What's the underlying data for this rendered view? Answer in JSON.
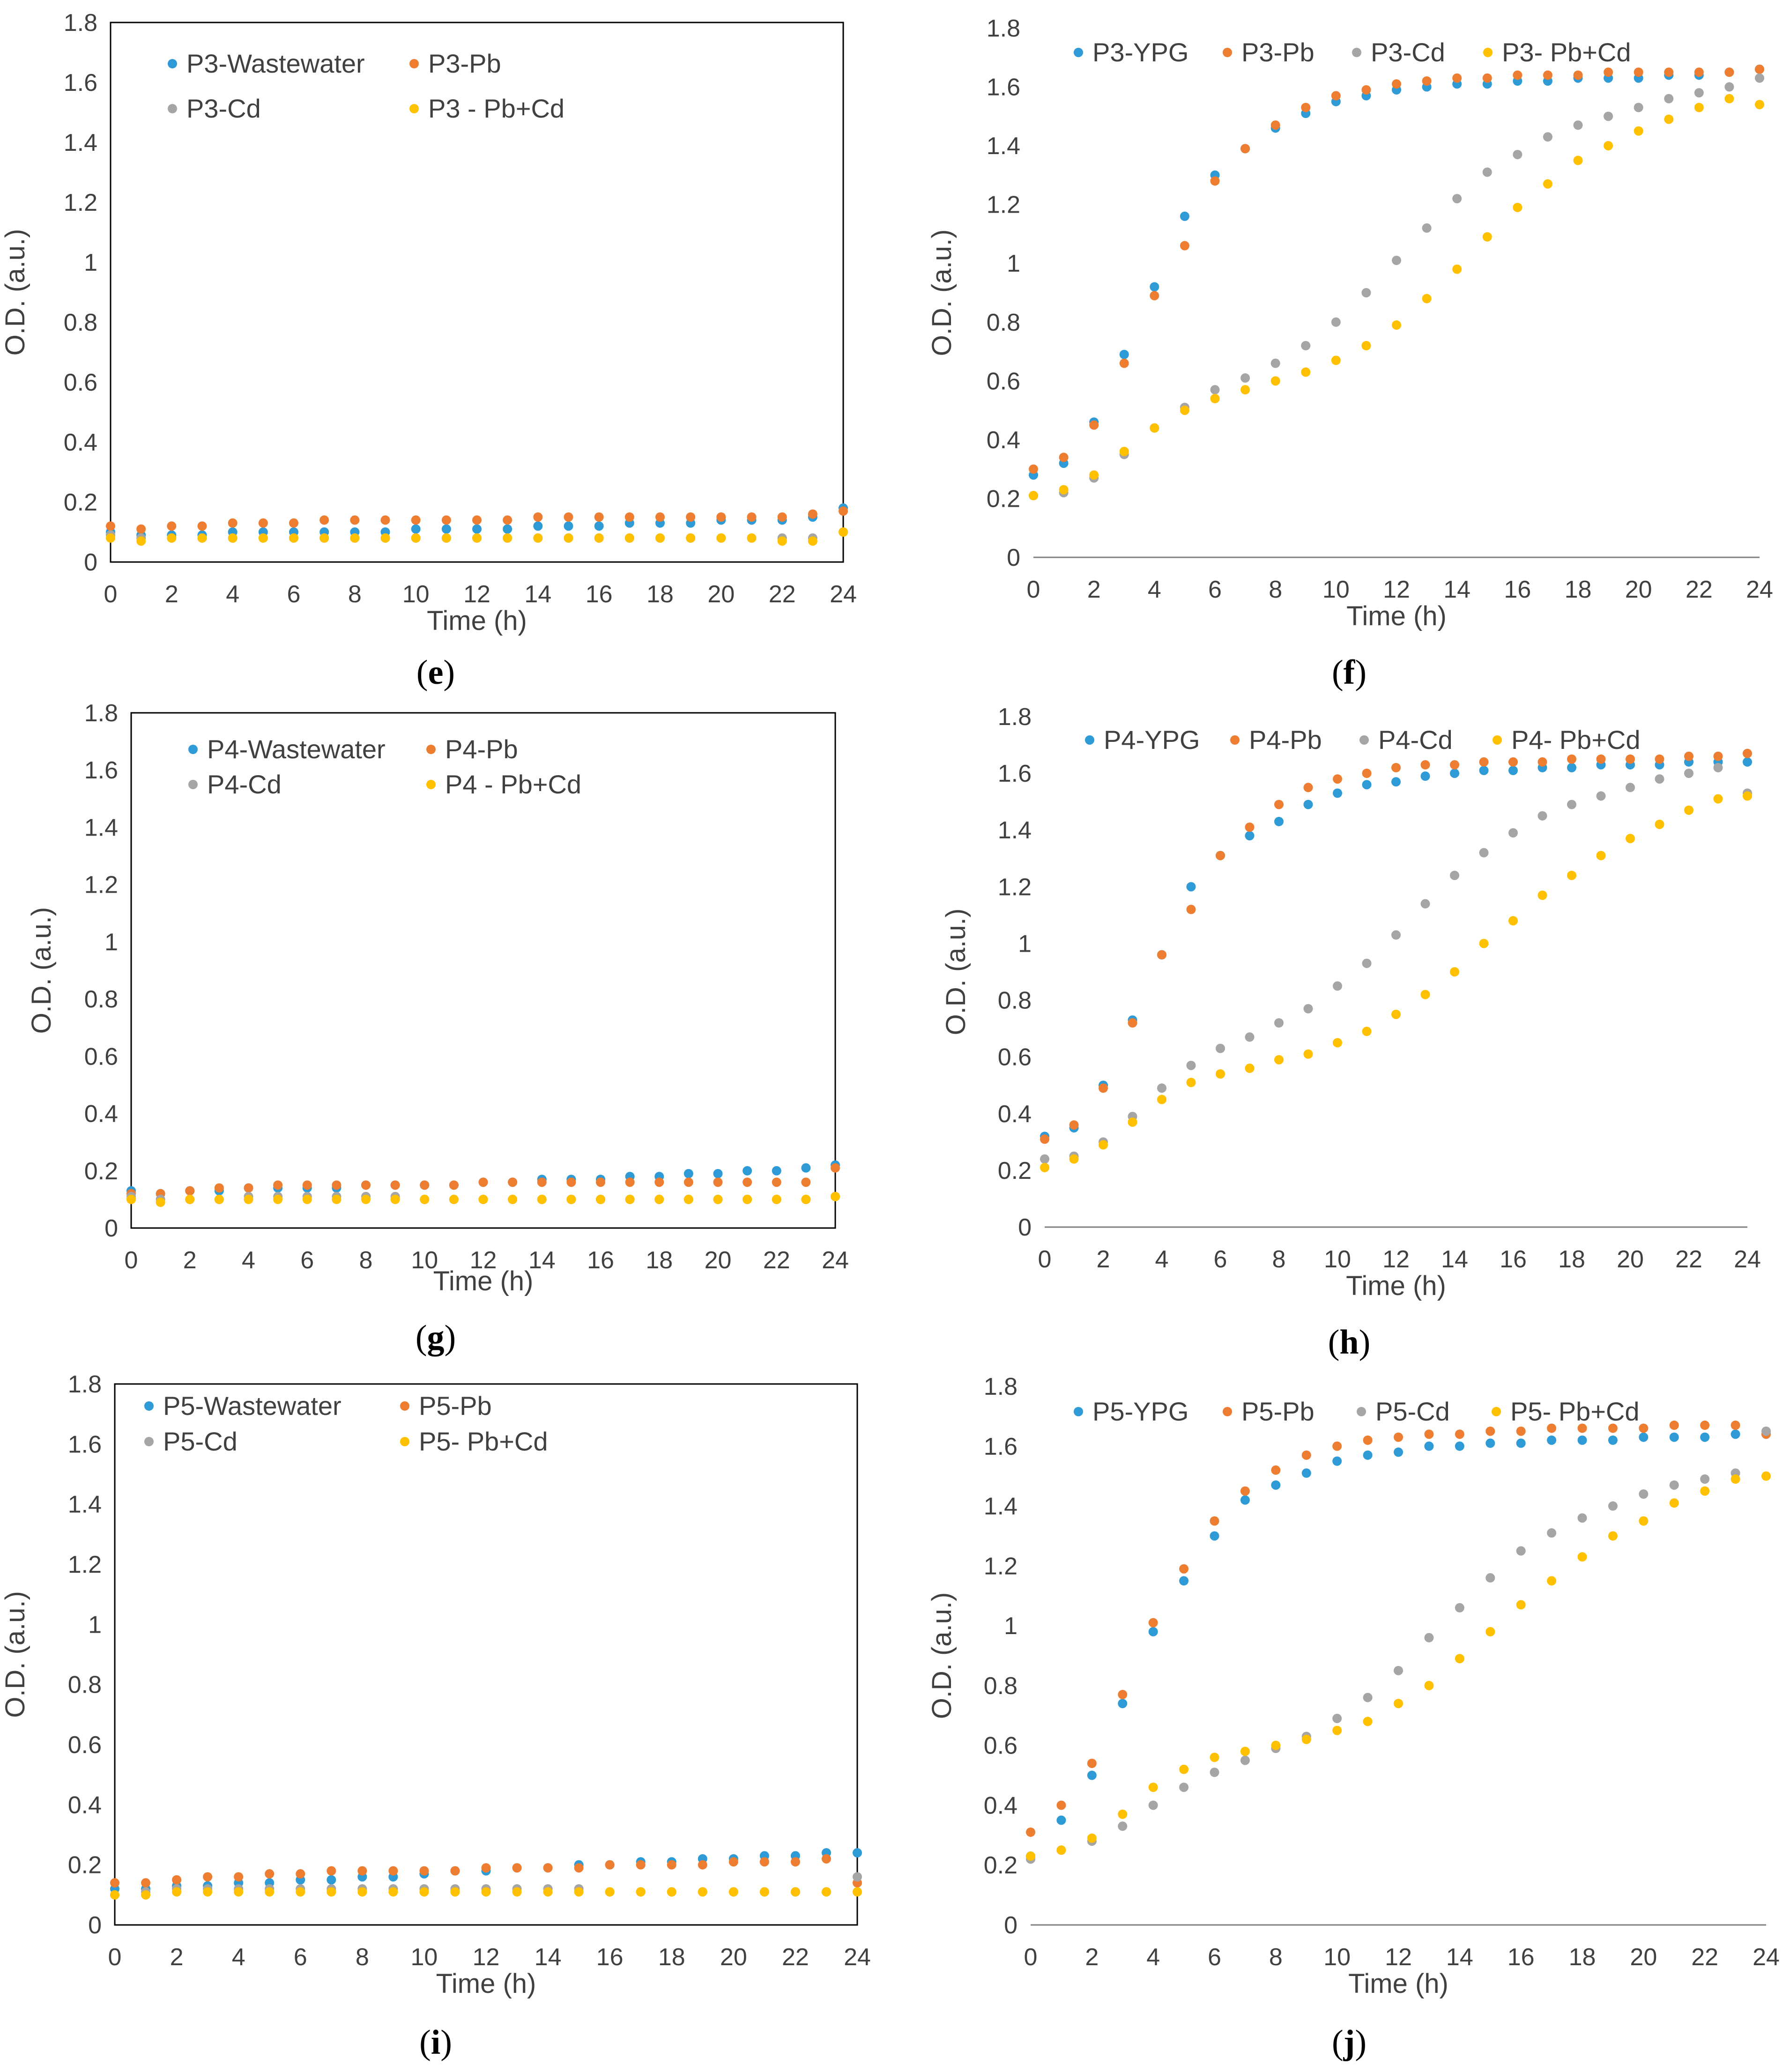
{
  "chart_data": [
    {
      "panel": "(e)",
      "type": "scatter",
      "xlabel": "Time (h)",
      "ylabel": "O.D. (a.u.)",
      "xlim": [
        0,
        24
      ],
      "ylim": [
        0,
        1.8
      ],
      "xticks": [
        "0",
        "2",
        "4",
        "6",
        "8",
        "10",
        "12",
        "14",
        "16",
        "18",
        "20",
        "22",
        "24"
      ],
      "yticks": [
        "0",
        "0.2",
        "0.4",
        "0.6",
        "0.8",
        "1",
        "1.2",
        "1.4",
        "1.6",
        "1.8"
      ],
      "legend_position": "top-left",
      "x": [
        0,
        1,
        2,
        3,
        4,
        5,
        6,
        7,
        8,
        9,
        10,
        11,
        12,
        13,
        14,
        15,
        16,
        17,
        18,
        19,
        20,
        21,
        22,
        23,
        24
      ],
      "series": [
        {
          "name": "P3-Wastewater",
          "color": "#2E9BD6",
          "values": [
            0.1,
            0.09,
            0.09,
            0.09,
            0.1,
            0.1,
            0.1,
            0.1,
            0.1,
            0.1,
            0.11,
            0.11,
            0.11,
            0.11,
            0.12,
            0.12,
            0.12,
            0.13,
            0.13,
            0.13,
            0.14,
            0.14,
            0.14,
            0.15,
            0.18
          ]
        },
        {
          "name": "P3-Pb",
          "color": "#ED7D31",
          "values": [
            0.12,
            0.11,
            0.12,
            0.12,
            0.13,
            0.13,
            0.13,
            0.14,
            0.14,
            0.14,
            0.14,
            0.14,
            0.14,
            0.14,
            0.15,
            0.15,
            0.15,
            0.15,
            0.15,
            0.15,
            0.15,
            0.15,
            0.15,
            0.16,
            0.17
          ]
        },
        {
          "name": "P3-Cd",
          "color": "#A5A5A5",
          "values": [
            0.09,
            0.08,
            0.08,
            0.08,
            0.08,
            0.08,
            0.08,
            0.08,
            0.08,
            0.08,
            0.08,
            0.08,
            0.08,
            0.08,
            0.08,
            0.08,
            0.08,
            0.08,
            0.08,
            0.08,
            0.08,
            0.08,
            0.08,
            0.08,
            0.1
          ]
        },
        {
          "name": "P3 - Pb+Cd",
          "color": "#FFC000",
          "values": [
            0.08,
            0.07,
            0.08,
            0.08,
            0.08,
            0.08,
            0.08,
            0.08,
            0.08,
            0.08,
            0.08,
            0.08,
            0.08,
            0.08,
            0.08,
            0.08,
            0.08,
            0.08,
            0.08,
            0.08,
            0.08,
            0.08,
            0.07,
            0.07,
            0.1
          ]
        }
      ]
    },
    {
      "panel": "(f)",
      "type": "scatter",
      "xlabel": "Time (h)",
      "ylabel": "O.D. (a.u.)",
      "xlim": [
        0,
        24
      ],
      "ylim": [
        0,
        1.8
      ],
      "xticks": [
        "0",
        "2",
        "4",
        "6",
        "8",
        "10",
        "12",
        "14",
        "16",
        "18",
        "20",
        "22",
        "24"
      ],
      "yticks": [
        "0",
        "0.2",
        "0.4",
        "0.6",
        "0.8",
        "1",
        "1.2",
        "1.4",
        "1.6",
        "1.8"
      ],
      "legend_position": "top",
      "x": [
        0,
        1,
        2,
        3,
        4,
        5,
        6,
        7,
        8,
        9,
        10,
        11,
        12,
        13,
        14,
        15,
        16,
        17,
        18,
        19,
        20,
        21,
        22,
        23,
        24
      ],
      "series": [
        {
          "name": "P3-YPG",
          "color": "#2E9BD6",
          "values": [
            0.28,
            0.32,
            0.46,
            0.69,
            0.92,
            1.16,
            1.3,
            1.39,
            1.46,
            1.51,
            1.55,
            1.57,
            1.59,
            1.6,
            1.61,
            1.61,
            1.62,
            1.62,
            1.63,
            1.63,
            1.63,
            1.64,
            1.64,
            1.65,
            1.66
          ]
        },
        {
          "name": "P3-Pb",
          "color": "#ED7D31",
          "values": [
            0.3,
            0.34,
            0.45,
            0.66,
            0.89,
            1.06,
            1.28,
            1.39,
            1.47,
            1.53,
            1.57,
            1.59,
            1.61,
            1.62,
            1.63,
            1.63,
            1.64,
            1.64,
            1.64,
            1.65,
            1.65,
            1.65,
            1.65,
            1.65,
            1.66
          ]
        },
        {
          "name": "P3-Cd",
          "color": "#A5A5A5",
          "values": [
            0.21,
            0.22,
            0.27,
            0.35,
            0.44,
            0.51,
            0.57,
            0.61,
            0.66,
            0.72,
            0.8,
            0.9,
            1.01,
            1.12,
            1.22,
            1.31,
            1.37,
            1.43,
            1.47,
            1.5,
            1.53,
            1.56,
            1.58,
            1.6,
            1.63
          ]
        },
        {
          "name": "P3- Pb+Cd",
          "color": "#FFC000",
          "values": [
            0.21,
            0.23,
            0.28,
            0.36,
            0.44,
            0.5,
            0.54,
            0.57,
            0.6,
            0.63,
            0.67,
            0.72,
            0.79,
            0.88,
            0.98,
            1.09,
            1.19,
            1.27,
            1.35,
            1.4,
            1.45,
            1.49,
            1.53,
            1.56,
            1.54
          ]
        }
      ]
    },
    {
      "panel": "(g)",
      "type": "scatter",
      "xlabel": "Time (h)",
      "ylabel": "O.D. (a.u.)",
      "xlim": [
        0,
        24
      ],
      "ylim": [
        0,
        1.8
      ],
      "xticks": [
        "0",
        "2",
        "4",
        "6",
        "8",
        "10",
        "12",
        "14",
        "16",
        "18",
        "20",
        "22",
        "24"
      ],
      "yticks": [
        "0",
        "0.2",
        "0.4",
        "0.6",
        "0.8",
        "1",
        "1.2",
        "1.4",
        "1.6",
        "1.8"
      ],
      "legend_position": "top-left",
      "x": [
        0,
        1,
        2,
        3,
        4,
        5,
        6,
        7,
        8,
        9,
        10,
        11,
        12,
        13,
        14,
        15,
        16,
        17,
        18,
        19,
        20,
        21,
        22,
        23,
        24
      ],
      "series": [
        {
          "name": "P4-Wastewater",
          "color": "#2E9BD6",
          "values": [
            0.13,
            0.12,
            0.13,
            0.13,
            0.14,
            0.14,
            0.14,
            0.14,
            0.15,
            0.15,
            0.15,
            0.15,
            0.16,
            0.16,
            0.17,
            0.17,
            0.17,
            0.18,
            0.18,
            0.19,
            0.19,
            0.2,
            0.2,
            0.21,
            0.22
          ]
        },
        {
          "name": "P4-Pb",
          "color": "#ED7D31",
          "values": [
            0.12,
            0.12,
            0.13,
            0.14,
            0.14,
            0.15,
            0.15,
            0.15,
            0.15,
            0.15,
            0.15,
            0.15,
            0.16,
            0.16,
            0.16,
            0.16,
            0.16,
            0.16,
            0.16,
            0.16,
            0.16,
            0.16,
            0.16,
            0.16,
            0.21
          ]
        },
        {
          "name": "P4-Cd",
          "color": "#A5A5A5",
          "values": [
            0.11,
            0.1,
            0.1,
            0.1,
            0.11,
            0.11,
            0.11,
            0.11,
            0.11,
            0.11,
            0.1,
            0.1,
            0.1,
            0.1,
            0.1,
            0.1,
            0.1,
            0.1,
            0.1,
            0.1,
            0.1,
            0.1,
            0.1,
            0.1,
            0.11
          ]
        },
        {
          "name": "P4 - Pb+Cd",
          "color": "#FFC000",
          "values": [
            0.1,
            0.09,
            0.1,
            0.1,
            0.1,
            0.1,
            0.1,
            0.1,
            0.1,
            0.1,
            0.1,
            0.1,
            0.1,
            0.1,
            0.1,
            0.1,
            0.1,
            0.1,
            0.1,
            0.1,
            0.1,
            0.1,
            0.1,
            0.1,
            0.11
          ]
        }
      ]
    },
    {
      "panel": "(h)",
      "type": "scatter",
      "xlabel": "Time (h)",
      "ylabel": "O.D. (a.u.)",
      "xlim": [
        0,
        24
      ],
      "ylim": [
        0,
        1.8
      ],
      "xticks": [
        "0",
        "2",
        "4",
        "6",
        "8",
        "10",
        "12",
        "14",
        "16",
        "18",
        "20",
        "22",
        "24"
      ],
      "yticks": [
        "0",
        "0.2",
        "0.4",
        "0.6",
        "0.8",
        "1",
        "1.2",
        "1.4",
        "1.6",
        "1.8"
      ],
      "legend_position": "top",
      "x": [
        0,
        1,
        2,
        3,
        4,
        5,
        6,
        7,
        8,
        9,
        10,
        11,
        12,
        13,
        14,
        15,
        16,
        17,
        18,
        19,
        20,
        21,
        22,
        23,
        24
      ],
      "series": [
        {
          "name": "P4-YPG",
          "color": "#2E9BD6",
          "values": [
            0.32,
            0.35,
            0.5,
            0.73,
            0.96,
            1.2,
            1.31,
            1.38,
            1.43,
            1.49,
            1.53,
            1.56,
            1.57,
            1.59,
            1.6,
            1.61,
            1.61,
            1.62,
            1.62,
            1.63,
            1.63,
            1.63,
            1.64,
            1.64,
            1.64
          ]
        },
        {
          "name": "P4-Pb",
          "color": "#ED7D31",
          "values": [
            0.31,
            0.36,
            0.49,
            0.72,
            0.96,
            1.12,
            1.31,
            1.41,
            1.49,
            1.55,
            1.58,
            1.6,
            1.62,
            1.63,
            1.63,
            1.64,
            1.64,
            1.64,
            1.65,
            1.65,
            1.65,
            1.65,
            1.66,
            1.66,
            1.67
          ]
        },
        {
          "name": "P4-Cd",
          "color": "#A5A5A5",
          "values": [
            0.24,
            0.25,
            0.3,
            0.39,
            0.49,
            0.57,
            0.63,
            0.67,
            0.72,
            0.77,
            0.85,
            0.93,
            1.03,
            1.14,
            1.24,
            1.32,
            1.39,
            1.45,
            1.49,
            1.52,
            1.55,
            1.58,
            1.6,
            1.62,
            1.53
          ]
        },
        {
          "name": "P4- Pb+Cd",
          "color": "#FFC000",
          "values": [
            0.21,
            0.24,
            0.29,
            0.37,
            0.45,
            0.51,
            0.54,
            0.56,
            0.59,
            0.61,
            0.65,
            0.69,
            0.75,
            0.82,
            0.9,
            1.0,
            1.08,
            1.17,
            1.24,
            1.31,
            1.37,
            1.42,
            1.47,
            1.51,
            1.52
          ]
        }
      ]
    },
    {
      "panel": "(i)",
      "type": "scatter",
      "xlabel": "Time (h)",
      "ylabel": "O.D. (a.u.)",
      "xlim": [
        0,
        24
      ],
      "ylim": [
        0,
        1.8
      ],
      "xticks": [
        "0",
        "2",
        "4",
        "6",
        "8",
        "10",
        "12",
        "14",
        "16",
        "18",
        "20",
        "22",
        "24"
      ],
      "yticks": [
        "0",
        "0.2",
        "0.4",
        "0.6",
        "0.8",
        "1",
        "1.2",
        "1.4",
        "1.6",
        "1.8"
      ],
      "legend_position": "top-left",
      "x": [
        0,
        1,
        2,
        3,
        4,
        5,
        6,
        7,
        8,
        9,
        10,
        11,
        12,
        13,
        14,
        15,
        16,
        17,
        18,
        19,
        20,
        21,
        22,
        23,
        24
      ],
      "series": [
        {
          "name": "P5-Wastewater",
          "color": "#2E9BD6",
          "values": [
            0.12,
            0.12,
            0.13,
            0.13,
            0.14,
            0.14,
            0.15,
            0.15,
            0.16,
            0.16,
            0.17,
            0.18,
            0.18,
            0.19,
            0.19,
            0.2,
            0.2,
            0.21,
            0.21,
            0.22,
            0.22,
            0.23,
            0.23,
            0.24,
            0.24
          ]
        },
        {
          "name": "P5-Pb",
          "color": "#ED7D31",
          "values": [
            0.14,
            0.14,
            0.15,
            0.16,
            0.16,
            0.17,
            0.17,
            0.18,
            0.18,
            0.18,
            0.18,
            0.18,
            0.19,
            0.19,
            0.19,
            0.19,
            0.2,
            0.2,
            0.2,
            0.2,
            0.21,
            0.21,
            0.21,
            0.22,
            0.14
          ]
        },
        {
          "name": "P5-Cd",
          "color": "#A5A5A5",
          "values": [
            0.1,
            0.11,
            0.12,
            0.12,
            0.12,
            0.12,
            0.12,
            0.12,
            0.12,
            0.12,
            0.12,
            0.12,
            0.12,
            0.12,
            0.12,
            0.12,
            0.11,
            0.11,
            0.11,
            0.11,
            0.11,
            0.11,
            0.11,
            0.11,
            0.16
          ]
        },
        {
          "name": "P5- Pb+Cd",
          "color": "#FFC000",
          "values": [
            0.1,
            0.1,
            0.11,
            0.11,
            0.11,
            0.11,
            0.11,
            0.11,
            0.11,
            0.11,
            0.11,
            0.11,
            0.11,
            0.11,
            0.11,
            0.11,
            0.11,
            0.11,
            0.11,
            0.11,
            0.11,
            0.11,
            0.11,
            0.11,
            0.11
          ]
        }
      ]
    },
    {
      "panel": "(j)",
      "type": "scatter",
      "xlabel": "Time (h)",
      "ylabel": "O.D. (a.u.)",
      "xlim": [
        0,
        24
      ],
      "ylim": [
        0,
        1.8
      ],
      "xticks": [
        "0",
        "2",
        "4",
        "6",
        "8",
        "10",
        "12",
        "14",
        "16",
        "18",
        "20",
        "22",
        "24"
      ],
      "yticks": [
        "0",
        "0.2",
        "0.4",
        "0.6",
        "0.8",
        "1",
        "1.2",
        "1.4",
        "1.6",
        "1.8"
      ],
      "legend_position": "top",
      "x": [
        0,
        1,
        2,
        3,
        4,
        5,
        6,
        7,
        8,
        9,
        10,
        11,
        12,
        13,
        14,
        15,
        16,
        17,
        18,
        19,
        20,
        21,
        22,
        23,
        24
      ],
      "series": [
        {
          "name": "P5-YPG",
          "color": "#2E9BD6",
          "values": [
            0.23,
            0.35,
            0.5,
            0.74,
            0.98,
            1.15,
            1.3,
            1.42,
            1.47,
            1.51,
            1.55,
            1.57,
            1.58,
            1.6,
            1.6,
            1.61,
            1.61,
            1.62,
            1.62,
            1.62,
            1.63,
            1.63,
            1.63,
            1.64,
            1.64
          ]
        },
        {
          "name": "P5-Pb",
          "color": "#ED7D31",
          "values": [
            0.31,
            0.4,
            0.54,
            0.77,
            1.01,
            1.19,
            1.35,
            1.45,
            1.52,
            1.57,
            1.6,
            1.62,
            1.63,
            1.64,
            1.64,
            1.65,
            1.65,
            1.66,
            1.66,
            1.66,
            1.66,
            1.67,
            1.67,
            1.67,
            1.64
          ]
        },
        {
          "name": "P5-Cd",
          "color": "#A5A5A5",
          "values": [
            0.22,
            0.25,
            0.28,
            0.33,
            0.4,
            0.46,
            0.51,
            0.55,
            0.59,
            0.63,
            0.69,
            0.76,
            0.85,
            0.96,
            1.06,
            1.16,
            1.25,
            1.31,
            1.36,
            1.4,
            1.44,
            1.47,
            1.49,
            1.51,
            1.65
          ]
        },
        {
          "name": "P5- Pb+Cd",
          "color": "#FFC000",
          "values": [
            0.23,
            0.25,
            0.29,
            0.37,
            0.46,
            0.52,
            0.56,
            0.58,
            0.6,
            0.62,
            0.65,
            0.68,
            0.74,
            0.8,
            0.89,
            0.98,
            1.07,
            1.15,
            1.23,
            1.3,
            1.35,
            1.41,
            1.45,
            1.49,
            1.5
          ]
        }
      ]
    }
  ],
  "colors": {
    "text": "#404040",
    "axis": "#808080",
    "frame": "#000000"
  }
}
